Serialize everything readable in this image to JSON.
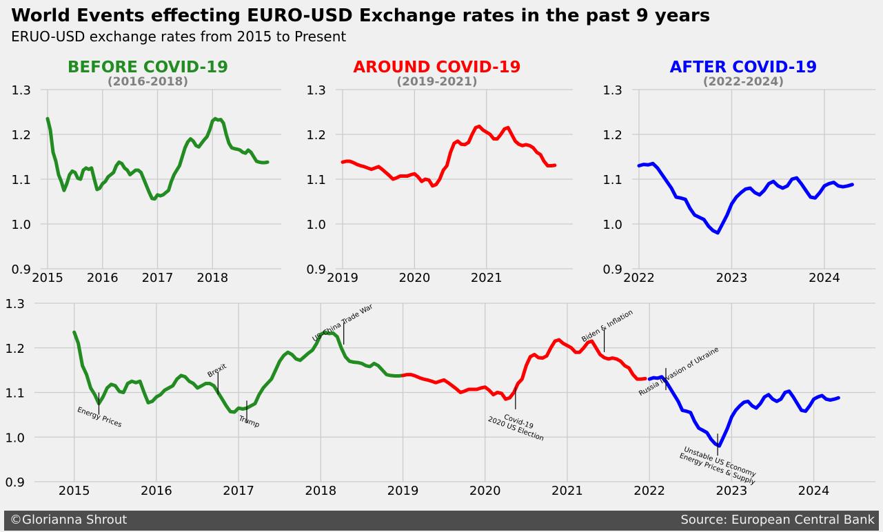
{
  "title": "World Events effecting EURO-USD Exchange rates in the past 9 years",
  "subtitle": "ERUO-USD exchange rates from 2015 to Present",
  "footer": {
    "left": "©Glorianna Shrout",
    "right": "Source: European Central Bank"
  },
  "colors": {
    "before": "#228b22",
    "around": "#ff0000",
    "after": "#0000ff",
    "background": "#f0f0f0",
    "grid": "#cbcbcb",
    "footer": "#4d4d4d",
    "period_subtitle": "#808080"
  },
  "chart_data": [
    {
      "type": "line",
      "title": "BEFORE COVID-19",
      "subtitle": "(2016-2018)",
      "color": "before",
      "xlim": [
        2015.0,
        2019.25
      ],
      "ylim": [
        0.9,
        1.3
      ],
      "xticks": [
        "2015",
        "2016",
        "2017",
        "2018"
      ],
      "yticks": [
        "0.9",
        "1.0",
        "1.1",
        "1.2",
        "1.3"
      ],
      "grid": true,
      "series": [
        {
          "x": [
            2015.0,
            2015.05,
            2015.1,
            2015.15,
            2015.2,
            2015.25,
            2015.3,
            2015.35,
            2015.4,
            2015.45,
            2015.5,
            2015.55,
            2015.6,
            2015.65,
            2015.7,
            2015.75,
            2015.8,
            2015.85,
            2015.9,
            2015.95,
            2016.0,
            2016.05,
            2016.1,
            2016.15,
            2016.2,
            2016.25,
            2016.3,
            2016.35,
            2016.4,
            2016.45,
            2016.5,
            2016.55,
            2016.6,
            2016.65,
            2016.7,
            2016.75,
            2016.8,
            2016.85,
            2016.9,
            2016.95,
            2017.0,
            2017.05,
            2017.1,
            2017.15,
            2017.2,
            2017.25,
            2017.3,
            2017.35,
            2017.4,
            2017.45,
            2017.5,
            2017.55,
            2017.6,
            2017.65,
            2017.7,
            2017.75,
            2017.8,
            2017.85,
            2017.9,
            2017.95,
            2018.0,
            2018.05,
            2018.1,
            2018.15,
            2018.2,
            2018.25,
            2018.3,
            2018.35,
            2018.4,
            2018.45,
            2018.5,
            2018.55,
            2018.6,
            2018.65,
            2018.7,
            2018.75,
            2018.8,
            2018.85,
            2018.9,
            2018.95,
            2019.0
          ],
          "y": [
            1.235,
            1.21,
            1.16,
            1.14,
            1.11,
            1.095,
            1.075,
            1.09,
            1.11,
            1.118,
            1.115,
            1.102,
            1.1,
            1.12,
            1.125,
            1.122,
            1.125,
            1.1,
            1.077,
            1.08,
            1.09,
            1.095,
            1.105,
            1.11,
            1.115,
            1.13,
            1.138,
            1.135,
            1.125,
            1.12,
            1.11,
            1.115,
            1.12,
            1.12,
            1.115,
            1.1,
            1.085,
            1.07,
            1.057,
            1.056,
            1.065,
            1.063,
            1.065,
            1.07,
            1.075,
            1.095,
            1.11,
            1.12,
            1.13,
            1.15,
            1.17,
            1.183,
            1.19,
            1.185,
            1.175,
            1.172,
            1.18,
            1.188,
            1.195,
            1.21,
            1.23,
            1.235,
            1.232,
            1.233,
            1.225,
            1.2,
            1.18,
            1.17,
            1.168,
            1.167,
            1.165,
            1.16,
            1.158,
            1.165,
            1.16,
            1.15,
            1.14,
            1.138,
            1.137,
            1.137,
            1.138
          ]
        }
      ]
    },
    {
      "type": "line",
      "title": "AROUND COVID-19",
      "subtitle": "(2019-2021)",
      "color": "around",
      "xlim": [
        2019.0,
        2022.2
      ],
      "ylim": [
        0.9,
        1.3
      ],
      "xticks": [
        "2019",
        "2020",
        "2021"
      ],
      "yticks": [
        "0.9",
        "1.0",
        "1.1",
        "1.2",
        "1.3"
      ],
      "grid": true,
      "series": [
        {
          "x": [
            2019.0,
            2019.05,
            2019.1,
            2019.15,
            2019.2,
            2019.25,
            2019.3,
            2019.35,
            2019.4,
            2019.45,
            2019.5,
            2019.55,
            2019.6,
            2019.65,
            2019.7,
            2019.75,
            2019.8,
            2019.85,
            2019.9,
            2019.95,
            2020.0,
            2020.05,
            2020.1,
            2020.15,
            2020.2,
            2020.25,
            2020.3,
            2020.35,
            2020.4,
            2020.45,
            2020.5,
            2020.55,
            2020.6,
            2020.65,
            2020.7,
            2020.75,
            2020.8,
            2020.85,
            2020.9,
            2020.95,
            2021.0,
            2021.05,
            2021.1,
            2021.15,
            2021.2,
            2021.25,
            2021.3,
            2021.35,
            2021.4,
            2021.45,
            2021.5,
            2021.55,
            2021.6,
            2021.65,
            2021.7,
            2021.75,
            2021.8,
            2021.85,
            2021.9,
            2021.95
          ],
          "y": [
            1.138,
            1.14,
            1.14,
            1.137,
            1.133,
            1.13,
            1.128,
            1.125,
            1.122,
            1.125,
            1.128,
            1.122,
            1.115,
            1.108,
            1.1,
            1.103,
            1.107,
            1.107,
            1.107,
            1.11,
            1.112,
            1.105,
            1.095,
            1.1,
            1.098,
            1.085,
            1.088,
            1.1,
            1.12,
            1.13,
            1.16,
            1.18,
            1.185,
            1.178,
            1.177,
            1.182,
            1.2,
            1.215,
            1.218,
            1.21,
            1.205,
            1.2,
            1.19,
            1.19,
            1.2,
            1.212,
            1.215,
            1.2,
            1.185,
            1.178,
            1.175,
            1.177,
            1.175,
            1.17,
            1.16,
            1.155,
            1.14,
            1.13,
            1.13,
            1.131
          ]
        }
      ]
    },
    {
      "type": "line",
      "title": "AFTER COVID-19",
      "subtitle": "(2022-2024)",
      "color": "after",
      "xlim": [
        2022.0,
        2024.55
      ],
      "ylim": [
        0.9,
        1.3
      ],
      "xticks": [
        "2022",
        "2023",
        "2024"
      ],
      "yticks": [
        "0.9",
        "1.0",
        "1.1",
        "1.2",
        "1.3"
      ],
      "grid": true,
      "series": [
        {
          "x": [
            2022.0,
            2022.05,
            2022.1,
            2022.15,
            2022.2,
            2022.25,
            2022.3,
            2022.35,
            2022.4,
            2022.45,
            2022.5,
            2022.55,
            2022.6,
            2022.65,
            2022.7,
            2022.75,
            2022.8,
            2022.85,
            2022.9,
            2022.95,
            2023.0,
            2023.05,
            2023.1,
            2023.15,
            2023.2,
            2023.25,
            2023.3,
            2023.35,
            2023.4,
            2023.45,
            2023.5,
            2023.55,
            2023.6,
            2023.65,
            2023.7,
            2023.75,
            2023.8,
            2023.85,
            2023.9,
            2023.95,
            2024.0,
            2024.05,
            2024.1,
            2024.15,
            2024.2,
            2024.25,
            2024.3
          ],
          "y": [
            1.13,
            1.133,
            1.132,
            1.135,
            1.125,
            1.11,
            1.095,
            1.08,
            1.06,
            1.058,
            1.055,
            1.035,
            1.02,
            1.015,
            1.01,
            0.995,
            0.985,
            0.98,
            1.0,
            1.02,
            1.045,
            1.06,
            1.07,
            1.078,
            1.08,
            1.07,
            1.065,
            1.075,
            1.09,
            1.095,
            1.085,
            1.08,
            1.085,
            1.1,
            1.103,
            1.09,
            1.075,
            1.06,
            1.058,
            1.07,
            1.085,
            1.09,
            1.093,
            1.085,
            1.083,
            1.085,
            1.088
          ]
        }
      ]
    },
    {
      "type": "line",
      "title": "",
      "xlim": [
        2014.6,
        2024.75
      ],
      "ylim": [
        0.9,
        1.3
      ],
      "xticks": [
        "2015",
        "2016",
        "2017",
        "2018",
        "2019",
        "2020",
        "2021",
        "2022",
        "2023",
        "2024"
      ],
      "yticks": [
        "0.9",
        "1.0",
        "1.1",
        "1.2",
        "1.3"
      ],
      "grid": true,
      "series_colors": [
        "before",
        "around",
        "after"
      ],
      "annotations": [
        {
          "text": "Energy Prices",
          "lines": [
            "Energy Prices"
          ],
          "x": 2015.3,
          "y": 1.075,
          "label_x": 2015.3,
          "label_y": 1.04,
          "angle": -20
        },
        {
          "text": "Brexit",
          "lines": [
            "Brexit"
          ],
          "x": 2016.75,
          "y": 1.12,
          "label_x": 2016.75,
          "label_y": 1.145,
          "angle": 30
        },
        {
          "text": "Trump",
          "lines": [
            "Trump"
          ],
          "x": 2017.1,
          "y": 1.057,
          "label_x": 2017.12,
          "label_y": 1.03,
          "angle": -20
        },
        {
          "text": "US-China Trade War",
          "lines": [
            "US-China Trade War"
          ],
          "x": 2018.28,
          "y": 1.232,
          "label_x": 2018.28,
          "label_y": 1.252,
          "angle": 30
        },
        {
          "text": "Covid-19\n2020 US Election",
          "lines": [
            "Covid-19",
            "2020 US Election"
          ],
          "x": 2020.37,
          "y": 1.087,
          "label_x": 2020.4,
          "label_y": 1.03,
          "angle": -20
        },
        {
          "text": "Biden & Inflation",
          "lines": [
            "Biden & Inflation"
          ],
          "x": 2021.45,
          "y": 1.215,
          "label_x": 2021.5,
          "label_y": 1.245,
          "angle": 30
        },
        {
          "text": "Russia Invasion of Ukraine",
          "lines": [
            "Russia Invasion of Ukraine"
          ],
          "x": 2022.2,
          "y": 1.13,
          "label_x": 2022.37,
          "label_y": 1.143,
          "angle": 30
        },
        {
          "text": "Unstable US Economy\nEnergy Prices & Supply",
          "lines": [
            "Unstable US Economy",
            "Energy Prices & Supply"
          ],
          "x": 2022.83,
          "y": 0.983,
          "label_x": 2022.85,
          "label_y": 0.94,
          "angle": -20
        }
      ]
    }
  ]
}
